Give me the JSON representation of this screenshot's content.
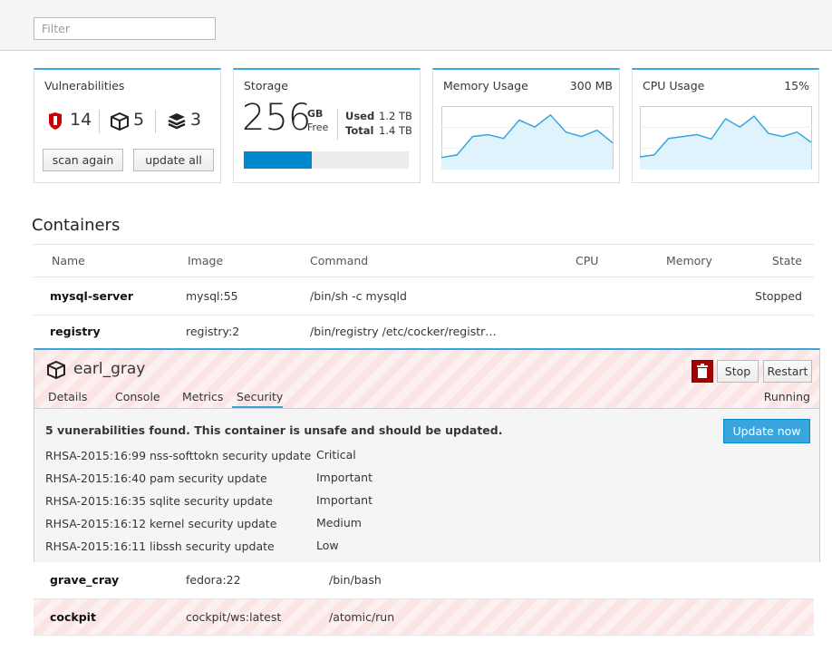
{
  "filter": {
    "placeholder": "Filter"
  },
  "vulnerabilities_card": {
    "title": "Vulnerabilities",
    "critical": 14,
    "important": 5,
    "total": 3,
    "buttons": [
      "scan again",
      "update all"
    ]
  },
  "storage_card": {
    "title": "Storage",
    "free": 256,
    "free_unit": "GB",
    "free_label": "Free",
    "used_label": "Used",
    "used": "1.2 TB",
    "total_label": "Total",
    "total": "1.4 TB"
  },
  "memory_card": {
    "title": "Memory Usage",
    "current": "300 MB",
    "ylim": [
      0,
      100
    ],
    "values": [
      19,
      23,
      52,
      55,
      49,
      78,
      67,
      86,
      59,
      52,
      62,
      42
    ]
  },
  "cpu_card": {
    "title": "CPU Usage",
    "current": "15%",
    "ylim": [
      0,
      100
    ],
    "values": [
      20,
      23,
      49,
      52,
      55,
      48,
      80,
      67,
      84,
      57,
      52,
      59,
      43
    ]
  },
  "containers": {
    "title": "Containers",
    "columns": [
      "Name",
      "Image",
      "Command",
      "CPU",
      "Memory",
      "State"
    ],
    "rows_before": [
      [
        "mysql-server",
        "mysql:55",
        "/bin/sh -c mysqld",
        null,
        null,
        "Stopped"
      ],
      [
        "registry",
        "registry:2",
        "/bin/registry /etc/cocker/registr…",
        null,
        null,
        null
      ]
    ],
    "expanded": {
      "name": "earl_gray",
      "buttons": [
        "Stop",
        "Restart"
      ],
      "tabs": [
        "Details",
        "Console",
        "Metrics",
        "Security"
      ],
      "active_tab": 3,
      "state": "Running",
      "message": "5 vunerabilities found. This container is unsafe and should be updated.",
      "action": "Update now",
      "issues": [
        [
          "RHSA-2015:16:99",
          "nss-softtokn security update",
          "Critical"
        ],
        [
          "RHSA-2015:16:40",
          "pam security update",
          "Important"
        ],
        [
          "RHSA-2015:16:35",
          "sqlite security update",
          "Important"
        ],
        [
          "RHSA-2015:16:12",
          "kernel security update",
          "Medium"
        ],
        [
          "RHSA-2015:16:11",
          "libssh security update",
          "Low"
        ]
      ]
    },
    "rows_after": [
      [
        "grave_cray",
        "fedora:22",
        "/bin/bash"
      ],
      [
        "cockpit",
        "cockpit/ws:latest",
        "/atomic/run"
      ]
    ]
  }
}
